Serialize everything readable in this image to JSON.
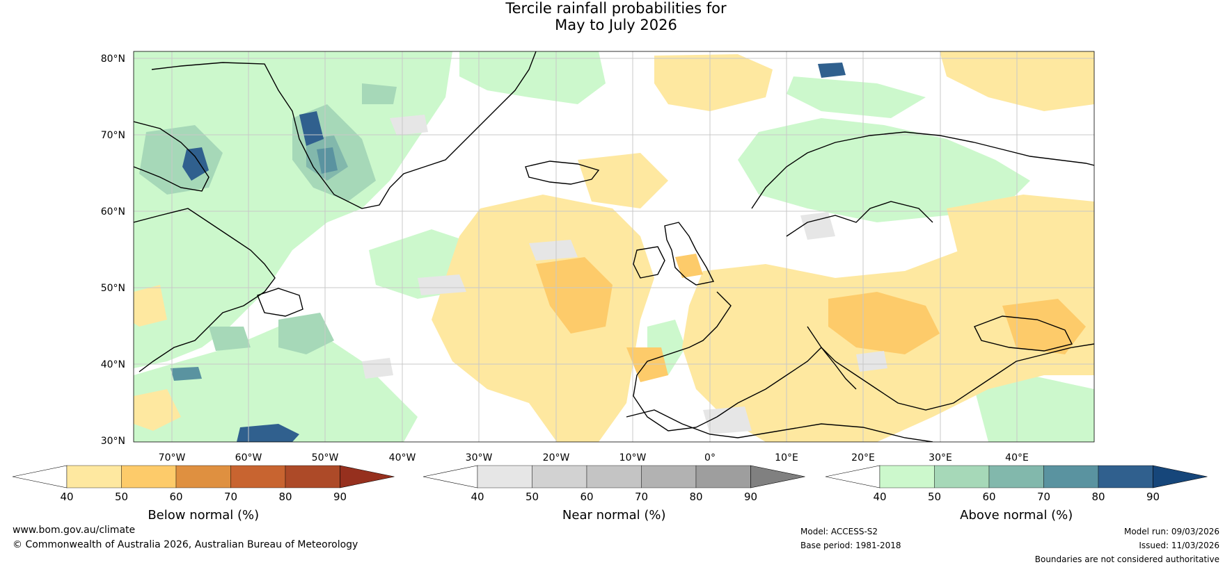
{
  "title": {
    "line1": "Tercile rainfall probabilities for",
    "line2": "May to July 2026"
  },
  "map": {
    "region": "Europe and North Atlantic",
    "lat_labels": [
      "80°N",
      "70°N",
      "60°N",
      "50°N",
      "40°N",
      "30°N"
    ],
    "lon_labels": [
      "70°W",
      "60°W",
      "50°W",
      "40°W",
      "30°W",
      "20°W",
      "10°W",
      "0°",
      "10°E",
      "20°E",
      "30°E",
      "40°E"
    ],
    "colors": {
      "land_outline": "#000000",
      "borders": "#808080",
      "grid": "#c8c8c8"
    }
  },
  "colorbars": [
    {
      "label": "Below normal (%)",
      "ticks": [
        "40",
        "50",
        "60",
        "70",
        "80",
        "90"
      ],
      "colors": [
        "#ffffff",
        "#fee8a0",
        "#fdcb6a",
        "#df9040",
        "#c86430",
        "#ad4a28",
        "#96301e"
      ]
    },
    {
      "label": "Near normal (%)",
      "ticks": [
        "40",
        "50",
        "60",
        "70",
        "80",
        "90"
      ],
      "colors": [
        "#ffffff",
        "#e6e6e6",
        "#d2d2d2",
        "#c4c4c4",
        "#b2b2b2",
        "#9e9e9e",
        "#808080"
      ]
    },
    {
      "label": "Above normal (%)",
      "ticks": [
        "40",
        "50",
        "60",
        "70",
        "80",
        "90"
      ],
      "colors": [
        "#ffffff",
        "#ccf8cc",
        "#a6d8b8",
        "#82b8ac",
        "#5a93a0",
        "#30608e",
        "#16467a"
      ]
    }
  ],
  "footer": {
    "website": "www.bom.gov.au/climate",
    "copyright": "© Commonwealth of Australia 2026, Australian Bureau of Meteorology",
    "model": "Model: ACCESS-S2",
    "base_period": "Base period: 1981-2018",
    "model_run": "Model run: 09/03/2026",
    "issued": "Issued: 11/03/2026",
    "disclaimer": "Boundaries are not considered authoritative"
  }
}
